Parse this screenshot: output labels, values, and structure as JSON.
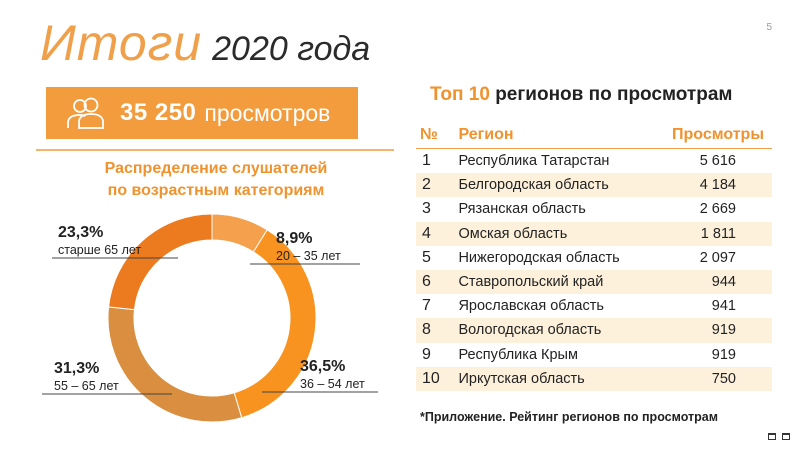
{
  "title": {
    "accent": "Итоги",
    "rest": "2020 года"
  },
  "page_number": "5",
  "views": {
    "icon": "users-icon",
    "count": "35 250",
    "unit": "просмотров"
  },
  "chart_title": [
    "Распределение слушателей",
    "по возрастным категориям"
  ],
  "chart_data": {
    "type": "pie",
    "variant": "donut",
    "title": "Распределение слушателей по возрастным категориям",
    "slices": [
      {
        "value": 8.9,
        "label": "8,9%",
        "category": "20 – 35 лет",
        "color": "#f5a04c"
      },
      {
        "value": 36.5,
        "label": "36,5%",
        "category": "36 – 54 лет",
        "color": "#f7931e"
      },
      {
        "value": 31.3,
        "label": "31,3%",
        "category": "55 – 65 лет",
        "color": "#d98f3f"
      },
      {
        "value": 23.3,
        "label": "23,3%",
        "category": "старше 65 лет",
        "color": "#ec7a1f"
      }
    ]
  },
  "table": {
    "title_prefix": "Топ",
    "title_number": "10",
    "title_suffix": "регионов по просмотрам",
    "headers": [
      "№",
      "Регион",
      "Просмотры"
    ],
    "rows": [
      [
        "1",
        "Республика Татарстан",
        "5 616"
      ],
      [
        "2",
        "Белгородская область",
        "4 184"
      ],
      [
        "3",
        "Рязанская область",
        "2 669"
      ],
      [
        "4",
        "Омская область",
        "1 811"
      ],
      [
        "5",
        "Нижегородская область",
        "2 097"
      ],
      [
        "6",
        "Ставропольский край",
        "944"
      ],
      [
        "7",
        "Ярославская область",
        "941"
      ],
      [
        "8",
        "Вологодская область",
        "919"
      ],
      [
        "9",
        "Республика Крым",
        "919"
      ],
      [
        "10",
        "Иркутская область",
        "750"
      ]
    ]
  },
  "footnote": "*Приложение. Рейтинг регионов по просмотрам",
  "colors": {
    "accent": "#f0922e",
    "banner": "#f39c3d",
    "row_alt": "#fdf1dc"
  }
}
